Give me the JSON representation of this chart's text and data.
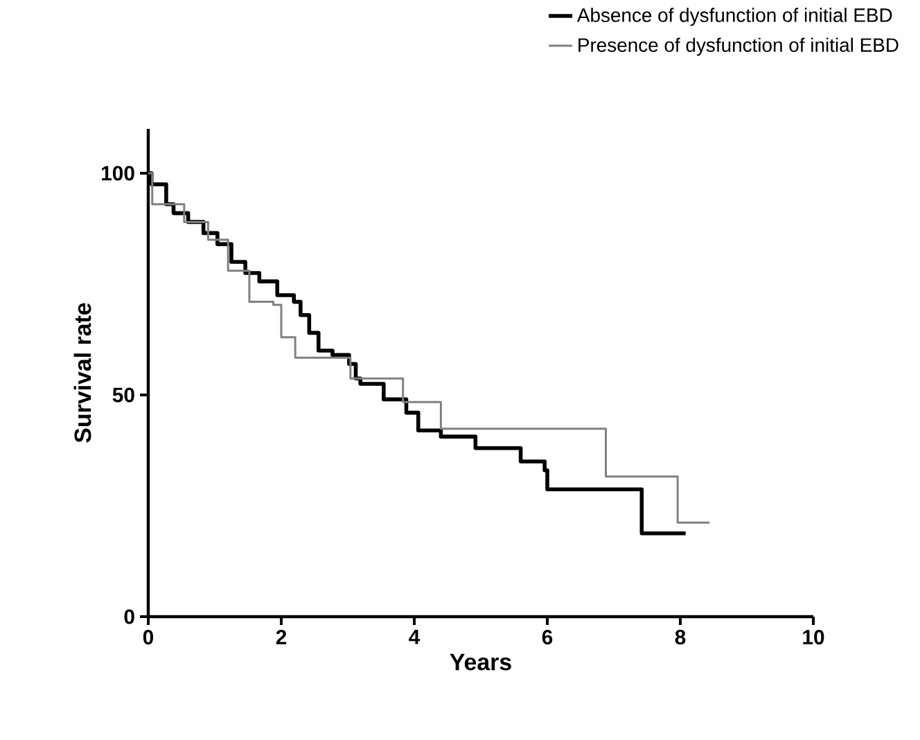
{
  "chart_data": {
    "type": "step",
    "xlabel": "Years",
    "ylabel": "Survival rate",
    "xlim": [
      0,
      10
    ],
    "ylim": [
      0,
      110
    ],
    "xticks": [
      0,
      2,
      4,
      6,
      8,
      10
    ],
    "yticks": [
      0,
      50,
      100
    ],
    "grid": false,
    "legend": "top right",
    "series": [
      {
        "name": "Absence of dysfunction of initial EBD",
        "color": "#000000",
        "x": [
          0,
          0.05,
          0.27,
          0.38,
          0.6,
          0.83,
          1.04,
          1.25,
          1.46,
          1.67,
          1.94,
          2.19,
          2.29,
          2.42,
          2.56,
          2.77,
          3.02,
          3.12,
          3.19,
          3.54,
          3.88,
          4.06,
          4.4,
          4.92,
          5.6,
          5.96,
          6.0,
          7.42,
          8.08
        ],
        "values": [
          100,
          97.5,
          93,
          91,
          89,
          86.5,
          84,
          80,
          77.5,
          75.6,
          72.5,
          71,
          68,
          64,
          60,
          59,
          57,
          53.7,
          52.5,
          49,
          46,
          42,
          40.6,
          38,
          35,
          33,
          28.7,
          18.8,
          18.8
        ]
      },
      {
        "name": "Presence of dysfunction of initial EBD",
        "color": "#808080",
        "x": [
          0,
          0.06,
          0.54,
          0.9,
          1.2,
          1.52,
          1.88,
          2.0,
          2.21,
          3.04,
          3.83,
          4.4,
          6.88,
          7.96,
          8.44
        ],
        "values": [
          100,
          93,
          89,
          85,
          78,
          71,
          70.3,
          63,
          58.4,
          53.7,
          48.4,
          42.4,
          31.6,
          21.2,
          21.2
        ]
      }
    ]
  }
}
